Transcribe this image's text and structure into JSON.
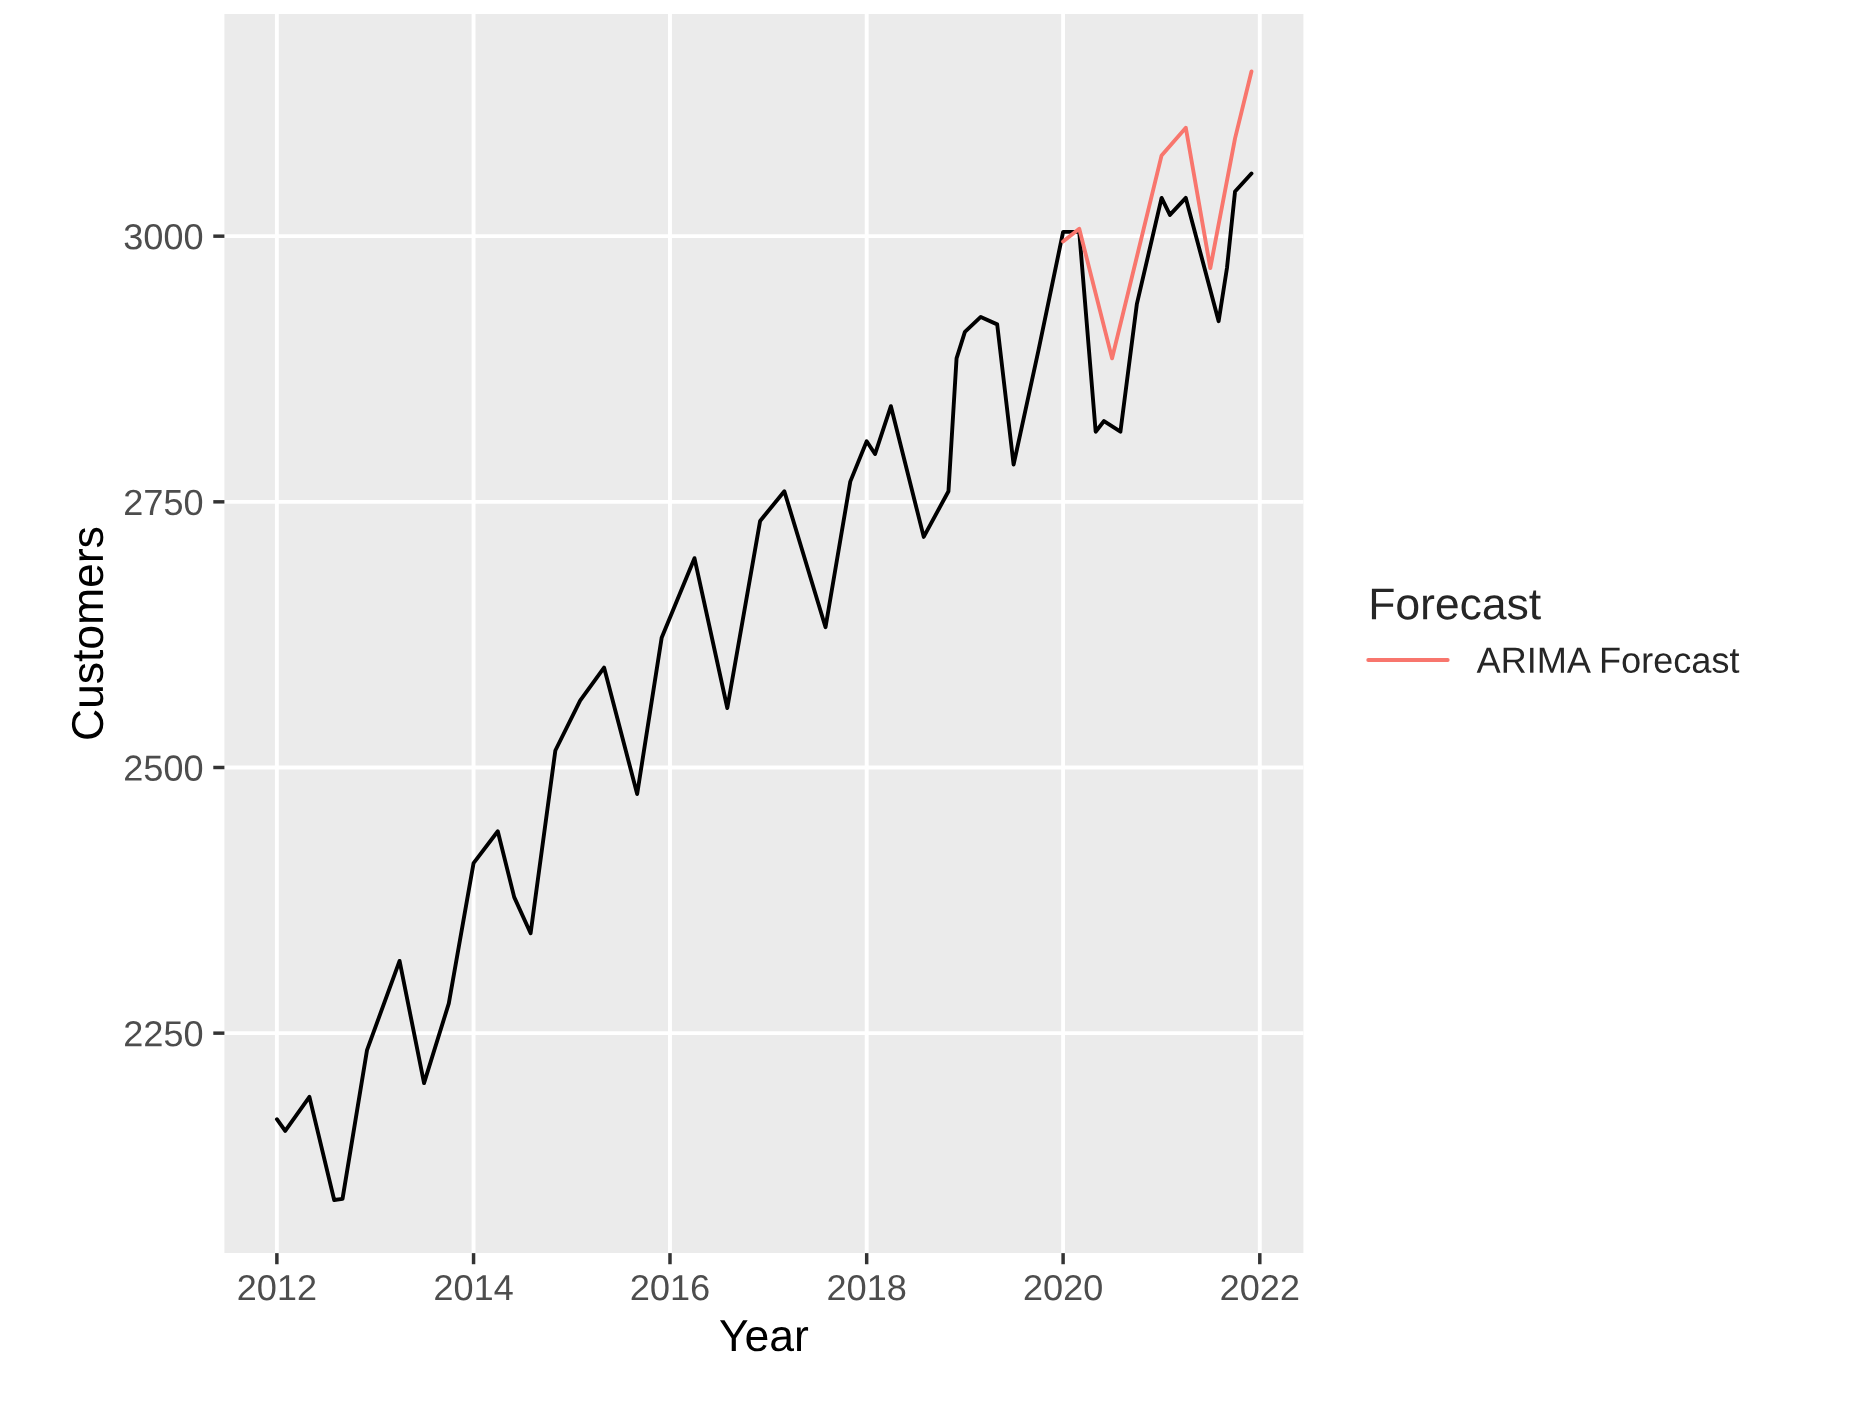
{
  "chart_data": {
    "type": "line",
    "xlabel": "Year",
    "ylabel": "Customers",
    "legend_title": "Forecast",
    "legend": "right",
    "grid": true,
    "xlim": [
      "2011-06-20",
      "2022-06-12"
    ],
    "ylim": [
      2043,
      3209
    ],
    "xticks": [
      {
        "value": "2012-01-01",
        "label": "2012"
      },
      {
        "value": "2014-01-01",
        "label": "2014"
      },
      {
        "value": "2016-01-01",
        "label": "2016"
      },
      {
        "value": "2018-01-01",
        "label": "2018"
      },
      {
        "value": "2020-01-01",
        "label": "2020"
      },
      {
        "value": "2022-01-01",
        "label": "2022"
      }
    ],
    "yticks": [
      2250,
      2500,
      2750,
      3000
    ],
    "series": [
      {
        "color": "#000000",
        "x": [
          "2012-01",
          "2012-02",
          "2012-05",
          "2012-08",
          "2012-09",
          "2012-12",
          "2013-04",
          "2013-07",
          "2013-10",
          "2014-01",
          "2014-04",
          "2014-06",
          "2014-08",
          "2014-11",
          "2015-02",
          "2015-05",
          "2015-09",
          "2015-12",
          "2016-04",
          "2016-08",
          "2016-12",
          "2017-03",
          "2017-08",
          "2017-11",
          "2018-01",
          "2018-02",
          "2018-04",
          "2018-08",
          "2018-11",
          "2018-12",
          "2019-01",
          "2019-03",
          "2019-05",
          "2019-07",
          "2019-10",
          "2020-01",
          "2020-03",
          "2020-05",
          "2020-06",
          "2020-08",
          "2020-10",
          "2021-01",
          "2021-02",
          "2021-04",
          "2021-08",
          "2021-09",
          "2021-10",
          "2021-12"
        ],
        "values": [
          2169,
          2158,
          2190,
          2093,
          2094,
          2234,
          2318,
          2203,
          2278,
          2410,
          2440,
          2378,
          2344,
          2516,
          2563,
          2594,
          2475,
          2622,
          2697,
          2556,
          2732,
          2760,
          2632,
          2769,
          2807,
          2795,
          2840,
          2717,
          2760,
          2885,
          2910,
          2924,
          2917,
          2785,
          2892,
          3004,
          3004,
          2816,
          2826,
          2816,
          2936,
          3036,
          3020,
          3036,
          2920,
          2970,
          3042,
          3059
        ]
      },
      {
        "name": "ARIMA Forecast",
        "color": "#f8766d",
        "x": [
          "2020-01",
          "2020-03",
          "2020-07",
          "2021-01",
          "2021-04",
          "2021-07",
          "2021-10",
          "2021-12"
        ],
        "values": [
          2995,
          3007,
          2885,
          3076,
          3102,
          2970,
          3092,
          3155
        ]
      }
    ]
  }
}
